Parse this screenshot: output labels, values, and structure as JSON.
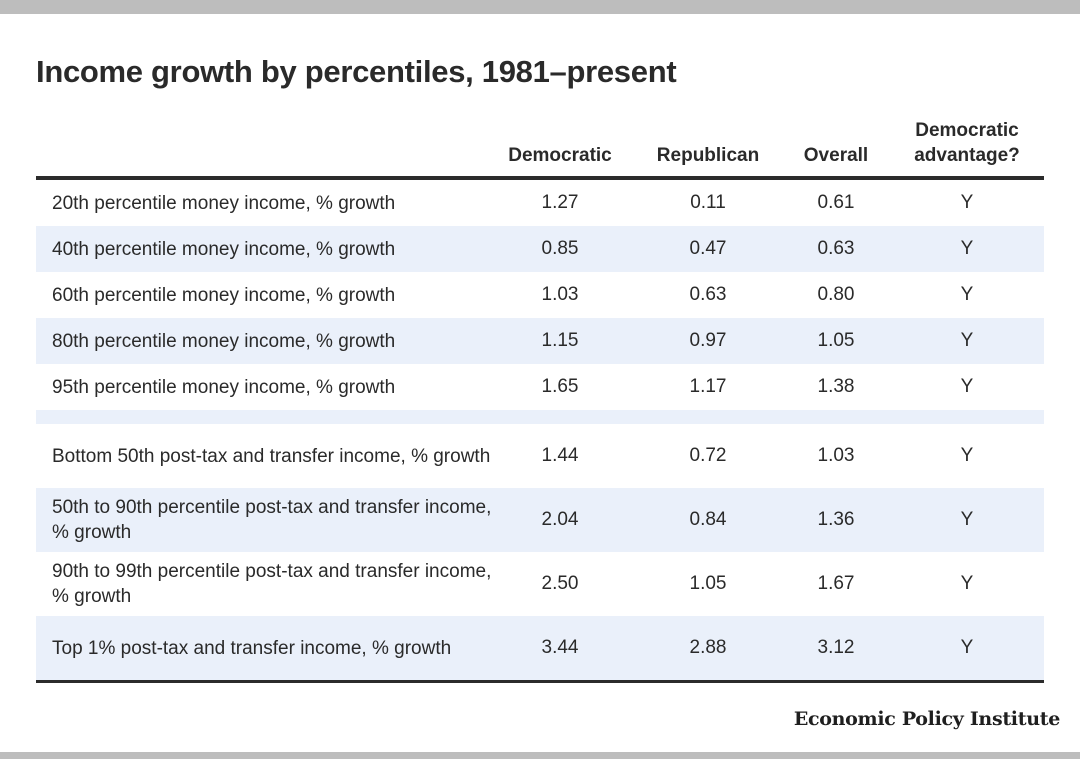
{
  "chart_data": {
    "type": "table",
    "title": "Income growth by percentiles, 1981–present",
    "columns": [
      "Democratic",
      "Republican",
      "Overall",
      "Democratic advantage?"
    ],
    "rows": [
      {
        "label": "20th percentile money income, % growth",
        "values": [
          "1.27",
          "0.11",
          "0.61",
          "Y"
        ]
      },
      {
        "label": "40th percentile money income, % growth",
        "values": [
          "0.85",
          "0.47",
          "0.63",
          "Y"
        ]
      },
      {
        "label": "60th percentile money income, % growth",
        "values": [
          "1.03",
          "0.63",
          "0.80",
          "Y"
        ]
      },
      {
        "label": "80th percentile money income, % growth",
        "values": [
          "1.15",
          "0.97",
          "1.05",
          "Y"
        ]
      },
      {
        "label": "95th percentile money income, % growth",
        "values": [
          "1.65",
          "1.17",
          "1.38",
          "Y"
        ]
      },
      {
        "label": "Bottom 50th post-tax and transfer income, % growth",
        "values": [
          "1.44",
          "0.72",
          "1.03",
          "Y"
        ]
      },
      {
        "label": "50th to 90th percentile post-tax and transfer income, % growth",
        "values": [
          "2.04",
          "0.84",
          "1.36",
          "Y"
        ]
      },
      {
        "label": "90th to 99th percentile post-tax and transfer income, % growth",
        "values": [
          "2.50",
          "1.05",
          "1.67",
          "Y"
        ]
      },
      {
        "label": "Top 1% post-tax and transfer income, % growth",
        "values": [
          "3.44",
          "2.88",
          "3.12",
          "Y"
        ]
      }
    ],
    "source": "Economic Policy Institute"
  }
}
